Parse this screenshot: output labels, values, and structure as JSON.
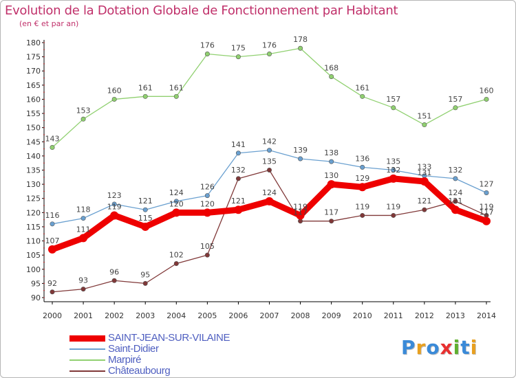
{
  "title": "Evolution de la Dotation Globale de Fonctionnement par Habitant",
  "subtitle": "(en € et par an)",
  "logo": {
    "letters": [
      "P",
      "r",
      "o",
      "x",
      "i",
      "t",
      "i"
    ],
    "colors": [
      "#3a8ad8",
      "#e8a020",
      "#3a8ad8",
      "#e83030",
      "#60b030",
      "#3a8ad8",
      "#e8a020"
    ]
  },
  "chart_data": {
    "type": "line",
    "x": [
      "2000",
      "2001",
      "2002",
      "2003",
      "2004",
      "2005",
      "2006",
      "2007",
      "2008",
      "2009",
      "2010",
      "2011",
      "2012",
      "2013",
      "2014"
    ],
    "ylim": [
      90,
      180
    ],
    "yticks": [
      90,
      95,
      100,
      105,
      110,
      115,
      120,
      125,
      130,
      135,
      140,
      145,
      150,
      155,
      160,
      165,
      170,
      175,
      180
    ],
    "grid": false,
    "legend_position": "bottom-left",
    "series": [
      {
        "name": "Marpiré",
        "color": "#90d070",
        "values": [
          143,
          153,
          160,
          161,
          161,
          176,
          175,
          176,
          178,
          168,
          161,
          157,
          151,
          157,
          160
        ]
      },
      {
        "name": "Saint-Didier",
        "color": "#6aa0d0",
        "values": [
          116,
          118,
          123,
          121,
          124,
          126,
          141,
          142,
          139,
          138,
          136,
          135,
          133,
          132,
          127
        ]
      },
      {
        "name": "Châteaubourg",
        "color": "#803838",
        "values": [
          92,
          93,
          96,
          95,
          102,
          105,
          132,
          135,
          117,
          117,
          119,
          119,
          121,
          124,
          119
        ]
      },
      {
        "name": "SAINT-JEAN-SUR-VILAINE",
        "color": "#ee0000",
        "values": [
          107,
          111,
          119,
          115,
          120,
          120,
          121,
          124,
          119,
          130,
          129,
          132,
          131,
          121,
          117
        ]
      }
    ],
    "legend_order": [
      "SAINT-JEAN-SUR-VILAINE",
      "Saint-Didier",
      "Marpiré",
      "Châteaubourg"
    ]
  }
}
